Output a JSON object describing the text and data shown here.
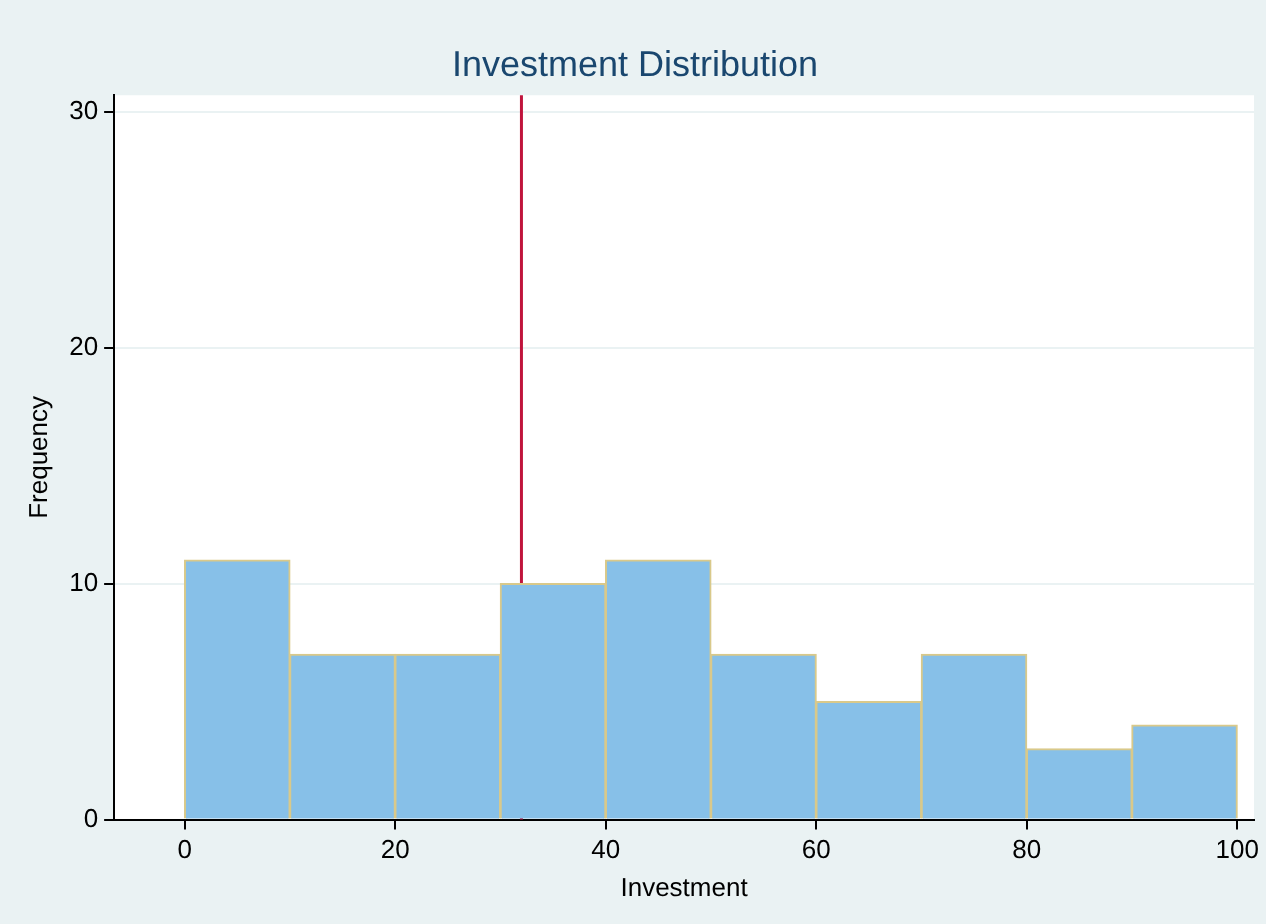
{
  "chart_data": {
    "type": "histogram",
    "title": "Investment Distribution",
    "xlabel": "Investment",
    "ylabel": "Frequency",
    "bins": [
      0,
      10,
      20,
      30,
      40,
      50,
      60,
      70,
      80,
      90,
      100
    ],
    "values": [
      11,
      7,
      7,
      10,
      11,
      7,
      5,
      7,
      3,
      4
    ],
    "color": "#87c0e8",
    "xlim": [
      -6.7,
      101.6
    ],
    "xticks": [
      0,
      20,
      40,
      60,
      80,
      100
    ],
    "ylim": [
      0,
      30.7
    ],
    "yticks": [
      0,
      10,
      20,
      30
    ],
    "grid": "y",
    "legend": false,
    "ref_lines": [
      {
        "axis": "x",
        "value": 32,
        "color": "#c0143c"
      }
    ]
  }
}
